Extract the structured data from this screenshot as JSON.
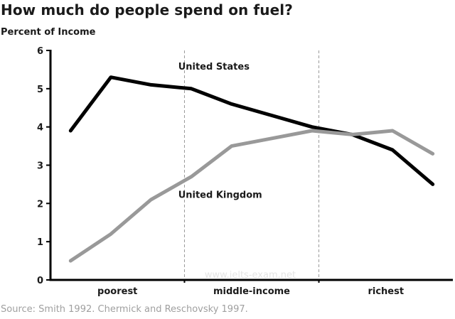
{
  "chart_data": {
    "type": "line",
    "title": "How much do people spend on fuel?",
    "ylabel": "Percent of Income",
    "xlabel": "",
    "ylim": [
      0,
      6
    ],
    "yticks": [
      0,
      1,
      2,
      3,
      4,
      5,
      6
    ],
    "xlim": [
      0,
      100
    ],
    "x": [
      5,
      15,
      25,
      35,
      45,
      55,
      65,
      75,
      85,
      95
    ],
    "categories": [
      {
        "label": "poorest",
        "range": [
          0,
          33.3
        ]
      },
      {
        "label": "middle-income",
        "range": [
          33.3,
          66.7
        ]
      },
      {
        "label": "richest",
        "range": [
          66.7,
          100
        ]
      }
    ],
    "dividers": [
      33.3,
      66.7
    ],
    "grid": false,
    "series": [
      {
        "name": "United States",
        "color": "#000000",
        "values": [
          3.9,
          5.3,
          5.1,
          5.0,
          4.6,
          4.3,
          4.0,
          3.8,
          3.4,
          2.5
        ],
        "label_at": [
          45,
          5.5
        ]
      },
      {
        "name": "United Kingdom",
        "color": "#999999",
        "values": [
          0.5,
          1.2,
          2.1,
          2.7,
          3.5,
          3.7,
          3.9,
          3.8,
          3.9,
          3.3
        ],
        "label_at": [
          45,
          2.15
        ]
      }
    ],
    "source": "Source: Smith 1992. Chermick and Reschovsky 1997.",
    "watermark": "www.ielts-exam.net"
  }
}
